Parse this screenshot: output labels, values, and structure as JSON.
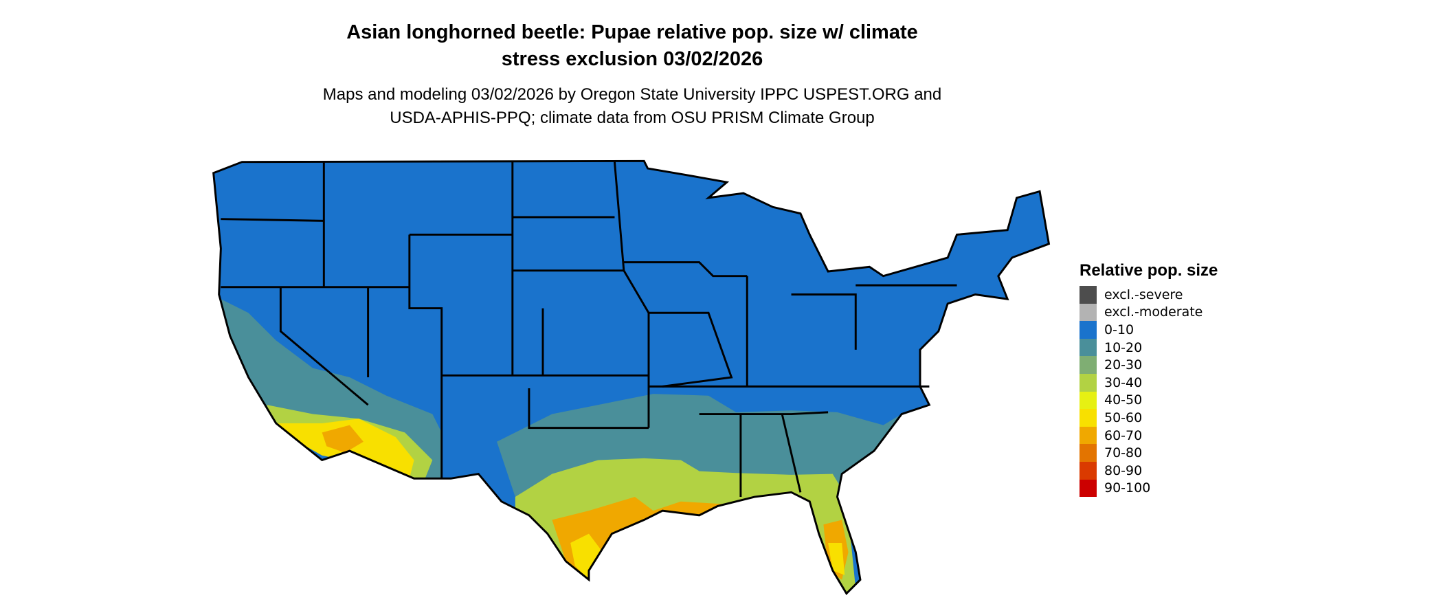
{
  "title": {
    "line1": "Asian longhorned beetle: Pupae relative pop. size w/ climate",
    "line2": "stress exclusion 03/02/2026"
  },
  "subtitle": {
    "line1": "Maps and modeling 03/02/2026 by Oregon State University IPPC USPEST.ORG and",
    "line2": "USDA-APHIS-PPQ; climate data from OSU PRISM Climate Group"
  },
  "legend": {
    "title": "Relative pop. size",
    "items": [
      {
        "label": "excl.-severe",
        "color": "#4d4d4d"
      },
      {
        "label": "excl.-moderate",
        "color": "#b3b3b3"
      },
      {
        "label": "0-10",
        "color": "#1a73cc"
      },
      {
        "label": "10-20",
        "color": "#4a8f9a"
      },
      {
        "label": "20-30",
        "color": "#7fae73"
      },
      {
        "label": "30-40",
        "color": "#b2d243"
      },
      {
        "label": "40-50",
        "color": "#e6f013"
      },
      {
        "label": "50-60",
        "color": "#f8e000"
      },
      {
        "label": "60-70",
        "color": "#f0a800"
      },
      {
        "label": "70-80",
        "color": "#e37400"
      },
      {
        "label": "80-90",
        "color": "#da3a00"
      },
      {
        "label": "90-100",
        "color": "#cc0000"
      }
    ]
  }
}
